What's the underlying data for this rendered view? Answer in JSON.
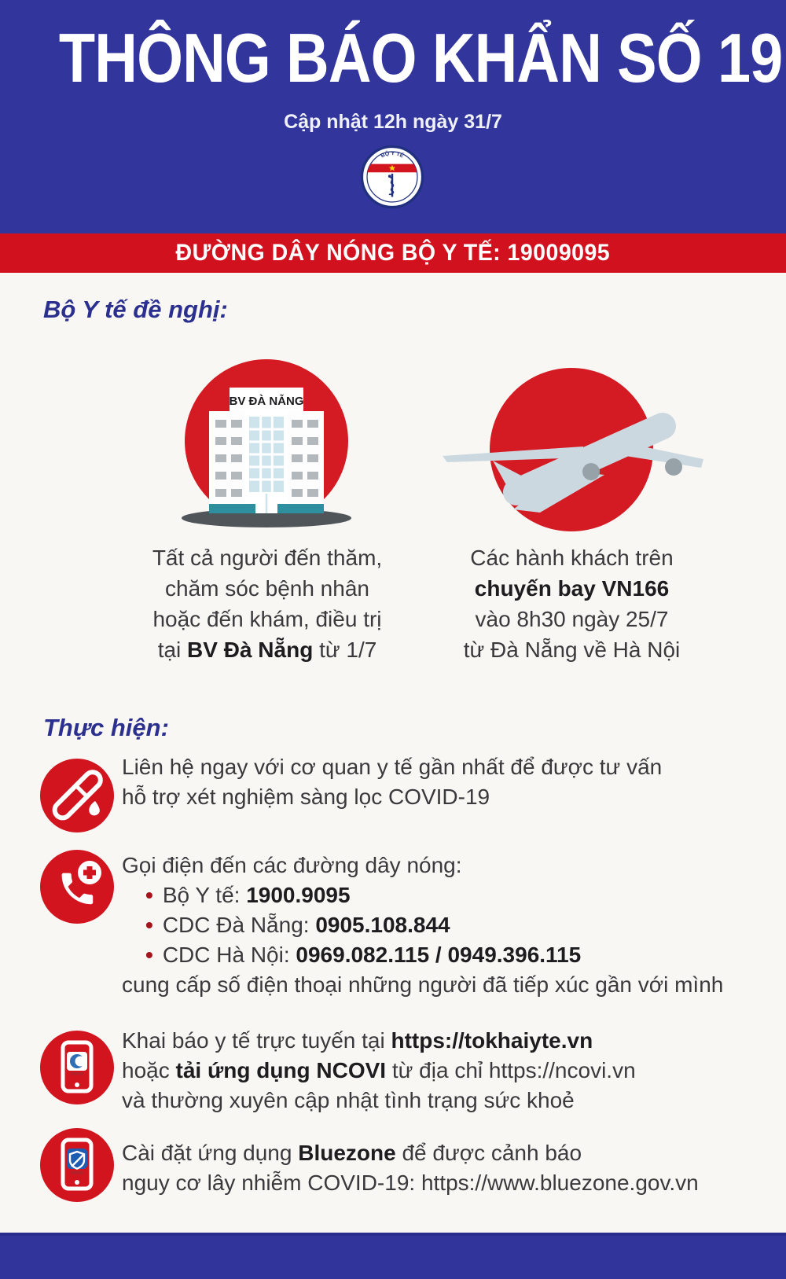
{
  "colors": {
    "brand_blue": "#31359c",
    "banner_red": "#d2111e",
    "icon_red": "#d41b24"
  },
  "header": {
    "title": "THÔNG BÁO KHẨN SỐ 19",
    "subtitle": "Cập nhật 12h ngày 31/7",
    "logo_text": "BỘ Y TẾ"
  },
  "hotline_bar": {
    "text": "ĐƯỜNG DÂY NÓNG BỘ Y TẾ: 19009095"
  },
  "request_section": {
    "heading": "Bộ Y tế đề nghị:",
    "hospital": {
      "icon": "hospital-building-icon",
      "sign": "BV ĐÀ NẴNG",
      "lines": [
        [
          {
            "t": "Tất cả người đến thăm,"
          }
        ],
        [
          {
            "t": "chăm sóc bệnh nhân"
          }
        ],
        [
          {
            "t": "hoặc đến khám, điều trị"
          }
        ],
        [
          {
            "t": "tại "
          },
          {
            "t": "BV Đà Nẵng",
            "b": true
          },
          {
            "t": " từ 1/7"
          }
        ]
      ]
    },
    "flight": {
      "icon": "airplane-icon",
      "lines": [
        [
          {
            "t": "Các hành khách trên"
          }
        ],
        [
          {
            "t": "chuyến bay VN166",
            "b": true
          }
        ],
        [
          {
            "t": "vào 8h30 ngày 25/7"
          }
        ],
        [
          {
            "t": "từ Đà Nẵng về Hà Nội"
          }
        ]
      ]
    }
  },
  "action_section": {
    "heading": "Thực hiện:",
    "bullet_char": "•",
    "item1": {
      "icon": "test-tube-icon",
      "lines": [
        [
          {
            "t": "Liên hệ ngay với cơ quan y tế gần nhất để được tư vấn"
          }
        ],
        [
          {
            "t": "hỗ trợ xét nghiệm sàng lọc COVID-19"
          }
        ]
      ]
    },
    "item2": {
      "icon": "phone-call-plus-icon",
      "intro": [
        {
          "t": "Gọi điện đến các đường dây nóng:"
        }
      ],
      "bullets": [
        [
          {
            "t": "Bộ Y tế: "
          },
          {
            "t": "1900.9095",
            "b": true
          }
        ],
        [
          {
            "t": "CDC Đà Nẵng: "
          },
          {
            "t": "0905.108.844",
            "b": true
          }
        ],
        [
          {
            "t": "CDC Hà Nội: "
          },
          {
            "t": "0969.082.115 / 0949.396.115",
            "b": true
          }
        ]
      ],
      "outro": [
        {
          "t": "cung cấp số điện thoại những người đã tiếp xúc gần với mình"
        }
      ]
    },
    "item3": {
      "icon": "ncovi-app-phone-icon",
      "lines": [
        [
          {
            "t": "Khai báo y tế trực tuyến tại "
          },
          {
            "t": "https://tokhaiyte.vn",
            "b": true
          }
        ],
        [
          {
            "t": "hoặc "
          },
          {
            "t": "tải ứng dụng NCOVI",
            "b": true
          },
          {
            "t": " từ địa chỉ https://ncovi.vn"
          }
        ],
        [
          {
            "t": "và thường xuyên cập nhật tình trạng sức khoẻ"
          }
        ]
      ]
    },
    "item4": {
      "icon": "bluezone-app-phone-icon",
      "lines": [
        [
          {
            "t": "Cài đặt ứng dụng "
          },
          {
            "t": "Bluezone",
            "b": true
          },
          {
            "t": " để được cảnh báo"
          }
        ],
        [
          {
            "t": "nguy cơ lây nhiễm COVID-19: https://www.bluezone.gov.vn"
          }
        ]
      ]
    }
  }
}
